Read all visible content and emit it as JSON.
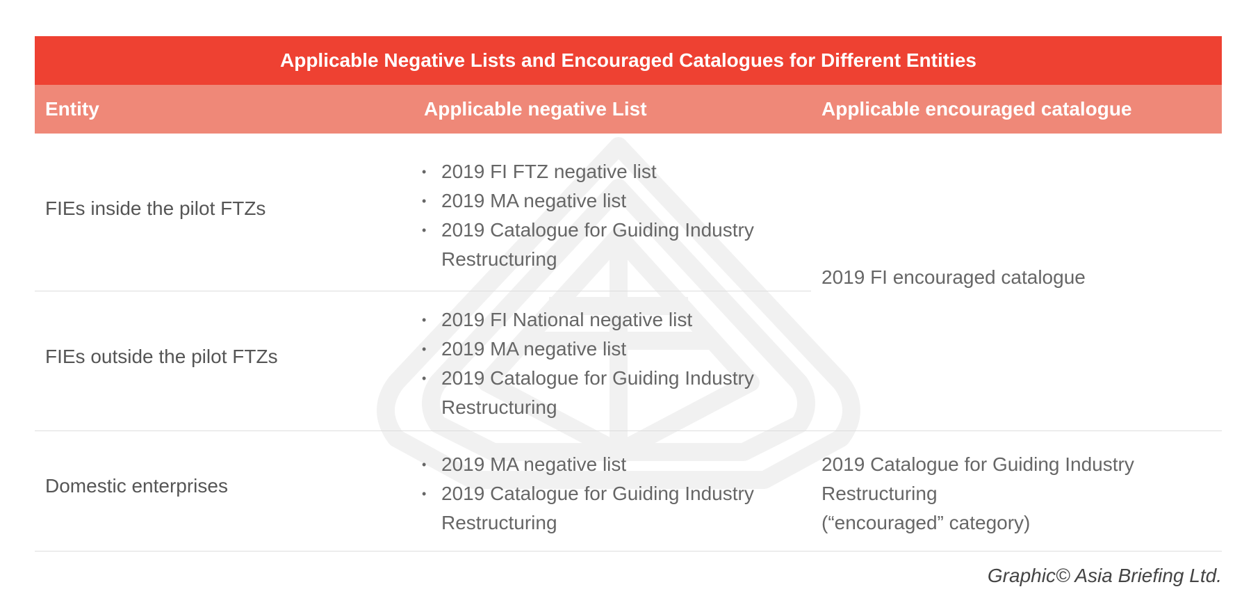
{
  "table": {
    "title": "Applicable Negative Lists and Encouraged Catalogues for Different Entities",
    "headers": [
      "Entity",
      "Applicable negative List",
      "Applicable encouraged catalogue"
    ],
    "rows": [
      {
        "entity": "FIEs inside the pilot FTZs",
        "negative_lists": [
          "2019 FI FTZ negative list",
          "2019 MA negative list",
          "2019 Catalogue for Guiding Industry Restructuring"
        ]
      },
      {
        "entity": "FIEs outside the pilot FTZs",
        "negative_lists": [
          "2019 FI National negative list",
          "2019 MA negative list",
          "2019 Catalogue for Guiding Industry Restructuring"
        ]
      },
      {
        "entity": "Domestic enterprises",
        "negative_lists": [
          "2019 MA negative list",
          "2019 Catalogue for Guiding Industry Restructuring"
        ],
        "catalogue_lines": [
          "2019 Catalogue for Guiding Industry",
          "Restructuring",
          "(“encouraged” category)"
        ]
      }
    ],
    "shared_catalogue": "2019 FI encouraged catalogue"
  },
  "credit": "Graphic© Asia Briefing Ltd."
}
